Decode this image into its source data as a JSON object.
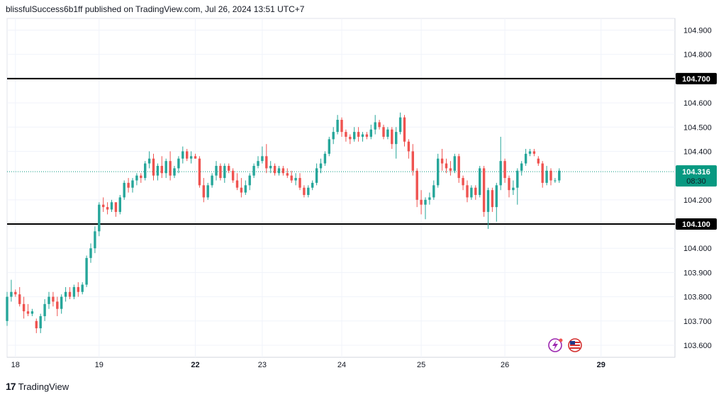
{
  "header": {
    "text": "blissfulSuccess6b1ff published on TradingView.com, Jul 26, 2024 13:51 UTC+7"
  },
  "footer": {
    "brand": "TradingView",
    "logo": "17"
  },
  "colors": {
    "up": "#26a69a",
    "down": "#ef5350",
    "grid": "#f0f3fa",
    "line": "#000000",
    "price_tag": "#089981"
  },
  "icons": [
    "lightning-icon",
    "us-flag-icon"
  ],
  "chart_data": {
    "type": "candlestick",
    "ylim": [
      103.56,
      104.95
    ],
    "y_ticks": [
      "104.900",
      "104.800",
      "104.600",
      "104.500",
      "104.400",
      "104.200",
      "104.000",
      "103.900",
      "103.800",
      "103.700",
      "103.600"
    ],
    "x_ticks": [
      {
        "label": "18",
        "bar": 2,
        "bold": false
      },
      {
        "label": "19",
        "bar": 22,
        "bold": false
      },
      {
        "label": "22",
        "bar": 45,
        "bold": true
      },
      {
        "label": "23",
        "bar": 61,
        "bold": false
      },
      {
        "label": "24",
        "bar": 80,
        "bold": false
      },
      {
        "label": "25",
        "bar": 99,
        "bold": false
      },
      {
        "label": "26",
        "bar": 119,
        "bold": false
      },
      {
        "label": "29",
        "bar": 142,
        "bold": true
      }
    ],
    "horizontal_lines": [
      {
        "value": 104.7,
        "label": "104.700"
      },
      {
        "value": 104.1,
        "label": "104.100"
      }
    ],
    "last_price": {
      "value": 104.316,
      "label": "104.316",
      "countdown": "08:30"
    },
    "ohlc": [
      [
        103.7,
        103.82,
        103.68,
        103.8
      ],
      [
        103.8,
        103.87,
        103.78,
        103.82
      ],
      [
        103.82,
        103.83,
        103.8,
        103.81
      ],
      [
        103.81,
        103.84,
        103.76,
        103.77
      ],
      [
        103.77,
        103.8,
        103.71,
        103.74
      ],
      [
        103.74,
        103.77,
        103.72,
        103.73
      ],
      [
        103.73,
        103.75,
        103.72,
        103.74
      ],
      [
        103.7,
        103.71,
        103.65,
        103.67
      ],
      [
        103.67,
        103.73,
        103.65,
        103.72
      ],
      [
        103.72,
        103.79,
        103.7,
        103.77
      ],
      [
        103.77,
        103.82,
        103.75,
        103.8
      ],
      [
        103.8,
        103.82,
        103.76,
        103.78
      ],
      [
        103.78,
        103.8,
        103.72,
        103.75
      ],
      [
        103.75,
        103.81,
        103.73,
        103.8
      ],
      [
        103.8,
        103.84,
        103.78,
        103.82
      ],
      [
        103.82,
        103.84,
        103.79,
        103.8
      ],
      [
        103.8,
        103.85,
        103.79,
        103.84
      ],
      [
        103.84,
        103.86,
        103.8,
        103.82
      ],
      [
        103.82,
        103.86,
        103.81,
        103.85
      ],
      [
        103.85,
        103.97,
        103.84,
        103.96
      ],
      [
        103.96,
        104.02,
        103.94,
        104.0
      ],
      [
        104.0,
        104.09,
        103.98,
        104.07
      ],
      [
        104.07,
        104.19,
        104.05,
        104.18
      ],
      [
        104.18,
        104.21,
        104.15,
        104.17
      ],
      [
        104.17,
        104.19,
        104.14,
        104.16
      ],
      [
        104.16,
        104.2,
        104.15,
        104.19
      ],
      [
        104.19,
        104.18,
        104.13,
        104.15
      ],
      [
        104.15,
        104.22,
        104.14,
        104.21
      ],
      [
        104.21,
        104.28,
        104.2,
        104.27
      ],
      [
        104.27,
        104.29,
        104.23,
        104.25
      ],
      [
        104.25,
        104.29,
        104.23,
        104.28
      ],
      [
        104.28,
        104.31,
        104.26,
        104.3
      ],
      [
        104.3,
        104.31,
        104.27,
        104.29
      ],
      [
        104.29,
        104.36,
        104.28,
        104.35
      ],
      [
        104.35,
        104.4,
        104.33,
        104.37
      ],
      [
        104.37,
        104.39,
        104.28,
        104.3
      ],
      [
        104.3,
        104.35,
        104.28,
        104.34
      ],
      [
        104.34,
        104.38,
        104.29,
        104.31
      ],
      [
        104.31,
        104.37,
        104.29,
        104.36
      ],
      [
        104.36,
        104.4,
        104.28,
        104.3
      ],
      [
        104.3,
        104.34,
        104.29,
        104.33
      ],
      [
        104.33,
        104.38,
        104.31,
        104.37
      ],
      [
        104.37,
        104.42,
        104.35,
        104.4
      ],
      [
        104.4,
        104.41,
        104.36,
        104.37
      ],
      [
        104.37,
        104.4,
        104.35,
        104.38
      ],
      [
        104.38,
        104.39,
        104.37,
        104.37
      ],
      [
        104.37,
        104.38,
        104.25,
        104.26
      ],
      [
        104.26,
        104.29,
        104.19,
        104.21
      ],
      [
        104.21,
        104.27,
        104.2,
        104.26
      ],
      [
        104.26,
        104.31,
        104.25,
        104.3
      ],
      [
        104.3,
        104.36,
        104.28,
        104.34
      ],
      [
        104.34,
        104.35,
        104.28,
        104.29
      ],
      [
        104.29,
        104.35,
        104.27,
        104.34
      ],
      [
        104.34,
        104.35,
        104.31,
        104.32
      ],
      [
        104.32,
        104.33,
        104.27,
        104.28
      ],
      [
        104.28,
        104.31,
        104.24,
        104.25
      ],
      [
        104.25,
        104.29,
        104.21,
        104.23
      ],
      [
        104.23,
        104.28,
        104.22,
        104.26
      ],
      [
        104.26,
        104.31,
        104.24,
        104.3
      ],
      [
        104.3,
        104.35,
        104.29,
        104.34
      ],
      [
        104.34,
        104.38,
        104.33,
        104.36
      ],
      [
        104.36,
        104.42,
        104.35,
        104.38
      ],
      [
        104.38,
        104.43,
        104.31,
        104.33
      ],
      [
        104.33,
        104.36,
        104.31,
        104.34
      ],
      [
        104.34,
        104.35,
        104.3,
        104.31
      ],
      [
        104.31,
        104.34,
        104.3,
        104.33
      ],
      [
        104.33,
        104.34,
        104.3,
        104.31
      ],
      [
        104.31,
        104.33,
        104.29,
        104.3
      ],
      [
        104.3,
        104.32,
        104.27,
        104.28
      ],
      [
        104.28,
        104.31,
        104.26,
        104.29
      ],
      [
        104.29,
        104.31,
        104.24,
        104.25
      ],
      [
        104.25,
        104.26,
        104.21,
        104.22
      ],
      [
        104.22,
        104.26,
        104.21,
        104.25
      ],
      [
        104.25,
        104.28,
        104.24,
        104.27
      ],
      [
        104.27,
        104.35,
        104.26,
        104.33
      ],
      [
        104.33,
        104.37,
        104.31,
        104.35
      ],
      [
        104.35,
        104.4,
        104.34,
        104.39
      ],
      [
        104.39,
        104.46,
        104.38,
        104.45
      ],
      [
        104.45,
        104.5,
        104.43,
        104.48
      ],
      [
        104.48,
        104.55,
        104.47,
        104.53
      ],
      [
        104.53,
        104.54,
        104.46,
        104.48
      ],
      [
        104.48,
        104.49,
        104.44,
        104.46
      ],
      [
        104.46,
        104.47,
        104.43,
        104.45
      ],
      [
        104.45,
        104.5,
        104.44,
        104.48
      ],
      [
        104.48,
        104.5,
        104.44,
        104.46
      ],
      [
        104.46,
        104.48,
        104.44,
        104.47
      ],
      [
        104.47,
        104.48,
        104.45,
        104.46
      ],
      [
        104.46,
        104.51,
        104.45,
        104.49
      ],
      [
        104.49,
        104.55,
        104.47,
        104.52
      ],
      [
        104.52,
        104.53,
        104.49,
        104.5
      ],
      [
        104.5,
        104.51,
        104.45,
        104.46
      ],
      [
        104.46,
        104.5,
        104.45,
        104.49
      ],
      [
        104.49,
        104.5,
        104.41,
        104.43
      ],
      [
        104.43,
        104.5,
        104.37,
        104.48
      ],
      [
        104.48,
        104.56,
        104.47,
        104.54
      ],
      [
        104.54,
        104.55,
        104.42,
        104.44
      ],
      [
        104.44,
        104.45,
        104.37,
        104.4
      ],
      [
        104.4,
        104.43,
        104.3,
        104.32
      ],
      [
        104.32,
        104.33,
        104.17,
        104.2
      ],
      [
        104.2,
        104.24,
        104.14,
        104.18
      ],
      [
        104.18,
        104.21,
        104.12,
        104.2
      ],
      [
        104.2,
        104.23,
        104.18,
        104.21
      ],
      [
        104.21,
        104.28,
        104.2,
        104.26
      ],
      [
        104.26,
        104.39,
        104.25,
        104.37
      ],
      [
        104.37,
        104.41,
        104.32,
        104.35
      ],
      [
        104.35,
        104.37,
        104.31,
        104.33
      ],
      [
        104.33,
        104.36,
        104.3,
        104.32
      ],
      [
        104.32,
        104.39,
        104.31,
        104.38
      ],
      [
        104.38,
        104.39,
        104.27,
        104.29
      ],
      [
        104.29,
        104.3,
        104.24,
        104.26
      ],
      [
        104.26,
        104.28,
        104.19,
        104.21
      ],
      [
        104.21,
        104.26,
        104.2,
        104.25
      ],
      [
        104.25,
        104.26,
        104.2,
        104.22
      ],
      [
        104.22,
        104.34,
        104.21,
        104.33
      ],
      [
        104.33,
        104.34,
        104.13,
        104.15
      ],
      [
        104.15,
        104.25,
        104.08,
        104.24
      ],
      [
        104.24,
        104.25,
        104.15,
        104.17
      ],
      [
        104.17,
        104.27,
        104.11,
        104.26
      ],
      [
        104.26,
        104.46,
        104.24,
        104.36
      ],
      [
        104.36,
        104.37,
        104.27,
        104.29
      ],
      [
        104.29,
        104.3,
        104.21,
        104.24
      ],
      [
        104.24,
        104.28,
        104.22,
        104.25
      ],
      [
        104.25,
        104.33,
        104.18,
        104.32
      ],
      [
        104.32,
        104.36,
        104.3,
        104.35
      ],
      [
        104.35,
        104.41,
        104.34,
        104.39
      ],
      [
        104.39,
        104.41,
        104.38,
        104.4
      ],
      [
        104.4,
        104.41,
        104.38,
        104.39
      ],
      [
        104.37,
        104.38,
        104.34,
        104.35
      ],
      [
        104.35,
        104.36,
        104.25,
        104.27
      ],
      [
        104.27,
        104.34,
        104.26,
        104.32
      ],
      [
        104.32,
        104.33,
        104.26,
        104.28
      ],
      [
        104.28,
        104.29,
        104.27,
        104.28
      ],
      [
        104.28,
        104.33,
        104.27,
        104.32
      ]
    ]
  }
}
